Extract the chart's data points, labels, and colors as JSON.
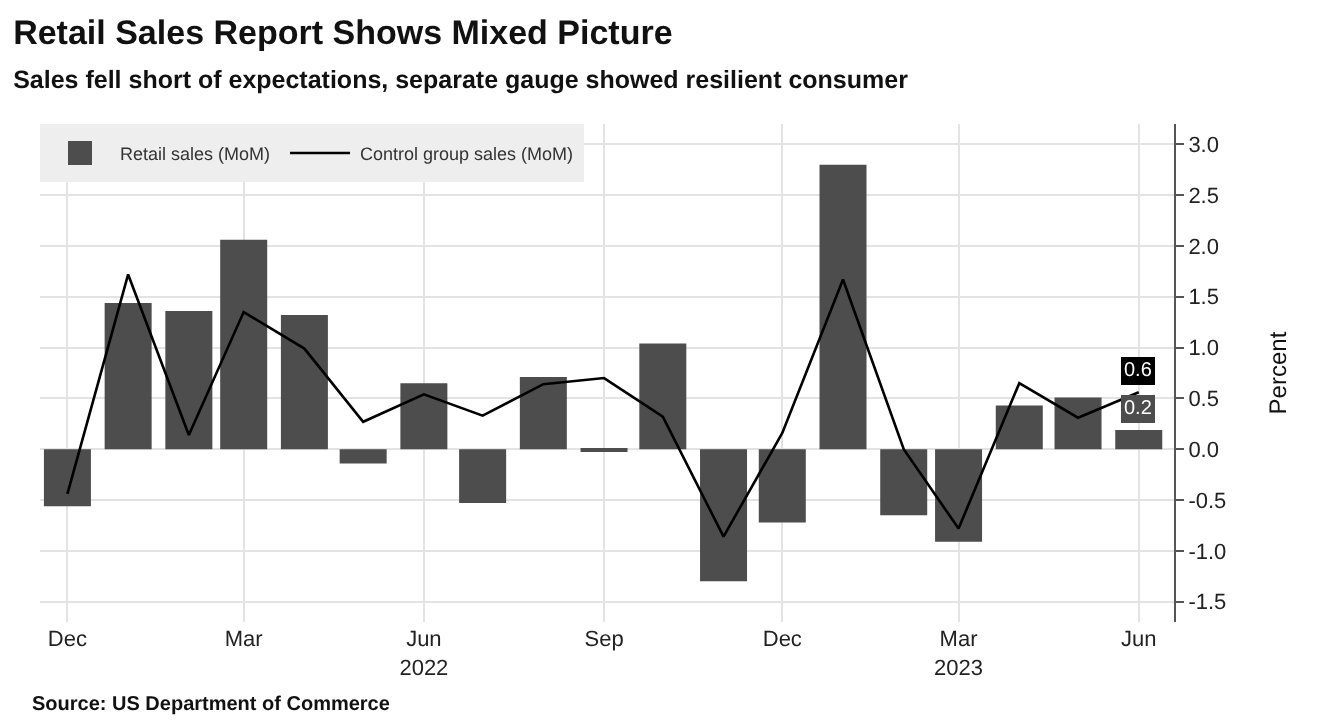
{
  "chart_data": {
    "type": "bar",
    "title": "Retail Sales Report Shows Mixed Picture",
    "subtitle": "Sales fell short of expectations, separate gauge showed resilient consumer",
    "ylabel": "Percent",
    "x": [
      "2021-12",
      "2022-01",
      "2022-02",
      "2022-03",
      "2022-04",
      "2022-05",
      "2022-06",
      "2022-07",
      "2022-08",
      "2022-09",
      "2022-10",
      "2022-11",
      "2022-12",
      "2023-01",
      "2023-02",
      "2023-03",
      "2023-04",
      "2023-05",
      "2023-06"
    ],
    "series": [
      {
        "name": "Retail sales (MoM)",
        "color": "#4d4d4d",
        "values": [
          -0.56,
          1.44,
          1.36,
          2.06,
          1.32,
          -0.14,
          0.65,
          -0.53,
          0.71,
          -0.02,
          1.04,
          -1.3,
          -0.72,
          2.8,
          -0.65,
          -0.91,
          0.43,
          0.51,
          0.19
        ],
        "value_labels": [
          null,
          null,
          null,
          null,
          null,
          null,
          null,
          null,
          null,
          null,
          null,
          null,
          null,
          null,
          null,
          null,
          null,
          null,
          "0.2"
        ]
      },
      {
        "name": "Control group sales (MoM)",
        "type": "line",
        "color": "#000000",
        "values": [
          -0.44,
          1.72,
          0.14,
          1.35,
          0.99,
          0.27,
          0.54,
          0.33,
          0.64,
          0.7,
          0.32,
          -0.86,
          0.16,
          1.67,
          0.0,
          -0.78,
          0.65,
          0.31,
          0.56
        ],
        "value_labels": [
          null,
          null,
          null,
          null,
          null,
          null,
          null,
          null,
          null,
          null,
          null,
          null,
          null,
          null,
          null,
          null,
          null,
          null,
          "0.6"
        ]
      }
    ],
    "xlim": [
      "2021-11-17",
      "2023-06-19"
    ],
    "xticks": [
      {
        "value": "2021-12",
        "label": "Dec"
      },
      {
        "value": "2022-03",
        "label": "Mar"
      },
      {
        "value": "2022-06",
        "label": "Jun\n2022"
      },
      {
        "value": "2022-09",
        "label": "Sep"
      },
      {
        "value": "2022-12",
        "label": "Dec"
      },
      {
        "value": "2023-03",
        "label": "Mar\n2023"
      },
      {
        "value": "2023-06",
        "label": "Jun"
      }
    ],
    "ylim": [
      -1.7,
      3.2
    ],
    "yticks": [
      {
        "value": -1.5,
        "label": "-1.5"
      },
      {
        "value": -1,
        "label": "-1.0"
      },
      {
        "value": -0.5,
        "label": "-0.5"
      },
      {
        "value": 0,
        "label": "0.0"
      },
      {
        "value": 0.5,
        "label": "0.5"
      },
      {
        "value": 1,
        "label": "1.0"
      },
      {
        "value": 1.5,
        "label": "1.5"
      },
      {
        "value": 2,
        "label": "2.0"
      },
      {
        "value": 2.5,
        "label": "2.5"
      },
      {
        "value": 3,
        "label": "3.0"
      }
    ],
    "grid": true,
    "legend": "top left",
    "line_style": "solid",
    "marker": "none",
    "annotations": [
      "Source: US Department of Commerce"
    ]
  }
}
